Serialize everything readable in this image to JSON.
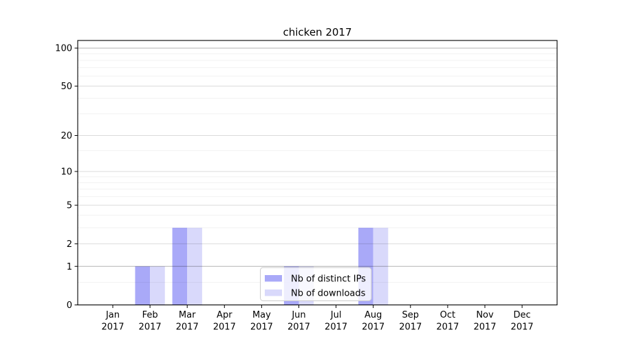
{
  "figure": {
    "background": "#ffffff",
    "plot_border_color": "#000000"
  },
  "chart_data": {
    "type": "bar",
    "title": "chicken 2017",
    "categories": [
      "Jan",
      "Feb",
      "Mar",
      "Apr",
      "May",
      "Jun",
      "Jul",
      "Aug",
      "Sep",
      "Oct",
      "Nov",
      "Dec"
    ],
    "category_year_label": "2017",
    "series": [
      {
        "name": "Nb of distinct IPs",
        "color": "#a9a9f8",
        "values": [
          0,
          1,
          3,
          0,
          0,
          1,
          0,
          3,
          0,
          0,
          0,
          0
        ]
      },
      {
        "name": "Nb of downloads",
        "color": "#d9d9fb",
        "values": [
          0,
          1,
          3,
          0,
          0,
          1,
          0,
          3,
          0,
          0,
          0,
          0
        ]
      }
    ],
    "xlabel": "",
    "ylabel": "",
    "y_scale": "log10(1+v)",
    "y_ticks": [
      0,
      1,
      2,
      5,
      10,
      20,
      50,
      100
    ],
    "y_tick_labels": [
      "0",
      "1",
      "2",
      "5",
      "10",
      "20",
      "50",
      "100"
    ],
    "y_minor_gridlines": [
      0.5,
      3,
      4,
      6,
      7,
      8,
      9,
      15,
      30,
      40,
      60,
      70,
      80,
      90
    ],
    "y_emphasis_gridlines": [
      1,
      100
    ],
    "ylim": [
      0,
      115
    ],
    "grid": "horizontal",
    "legend": {
      "position": "lower-center",
      "border_color": "#cccccc",
      "background": "rgba(255,255,255,0.8)"
    }
  }
}
